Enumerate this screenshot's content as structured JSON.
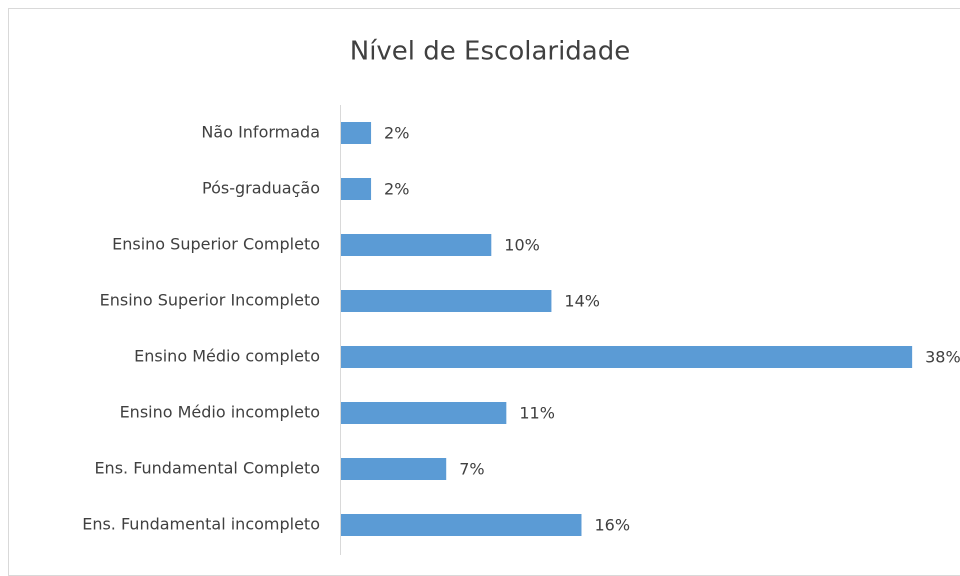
{
  "chart_data": {
    "type": "bar",
    "orientation": "horizontal",
    "title": "Nível de Escolaridade",
    "categories": [
      "Não Informada",
      "Pós-graduação",
      "Ensino Superior Completo",
      "Ensino Superior Incompleto",
      "Ensino Médio completo",
      "Ensino Médio incompleto",
      "Ens. Fundamental Completo",
      "Ens. Fundamental incompleto"
    ],
    "values": [
      2,
      2,
      10,
      14,
      38,
      11,
      7,
      16
    ],
    "value_labels": [
      "2%",
      "2%",
      "10%",
      "14%",
      "38%",
      "11%",
      "7%",
      "16%"
    ],
    "color": "#5b9bd5"
  }
}
